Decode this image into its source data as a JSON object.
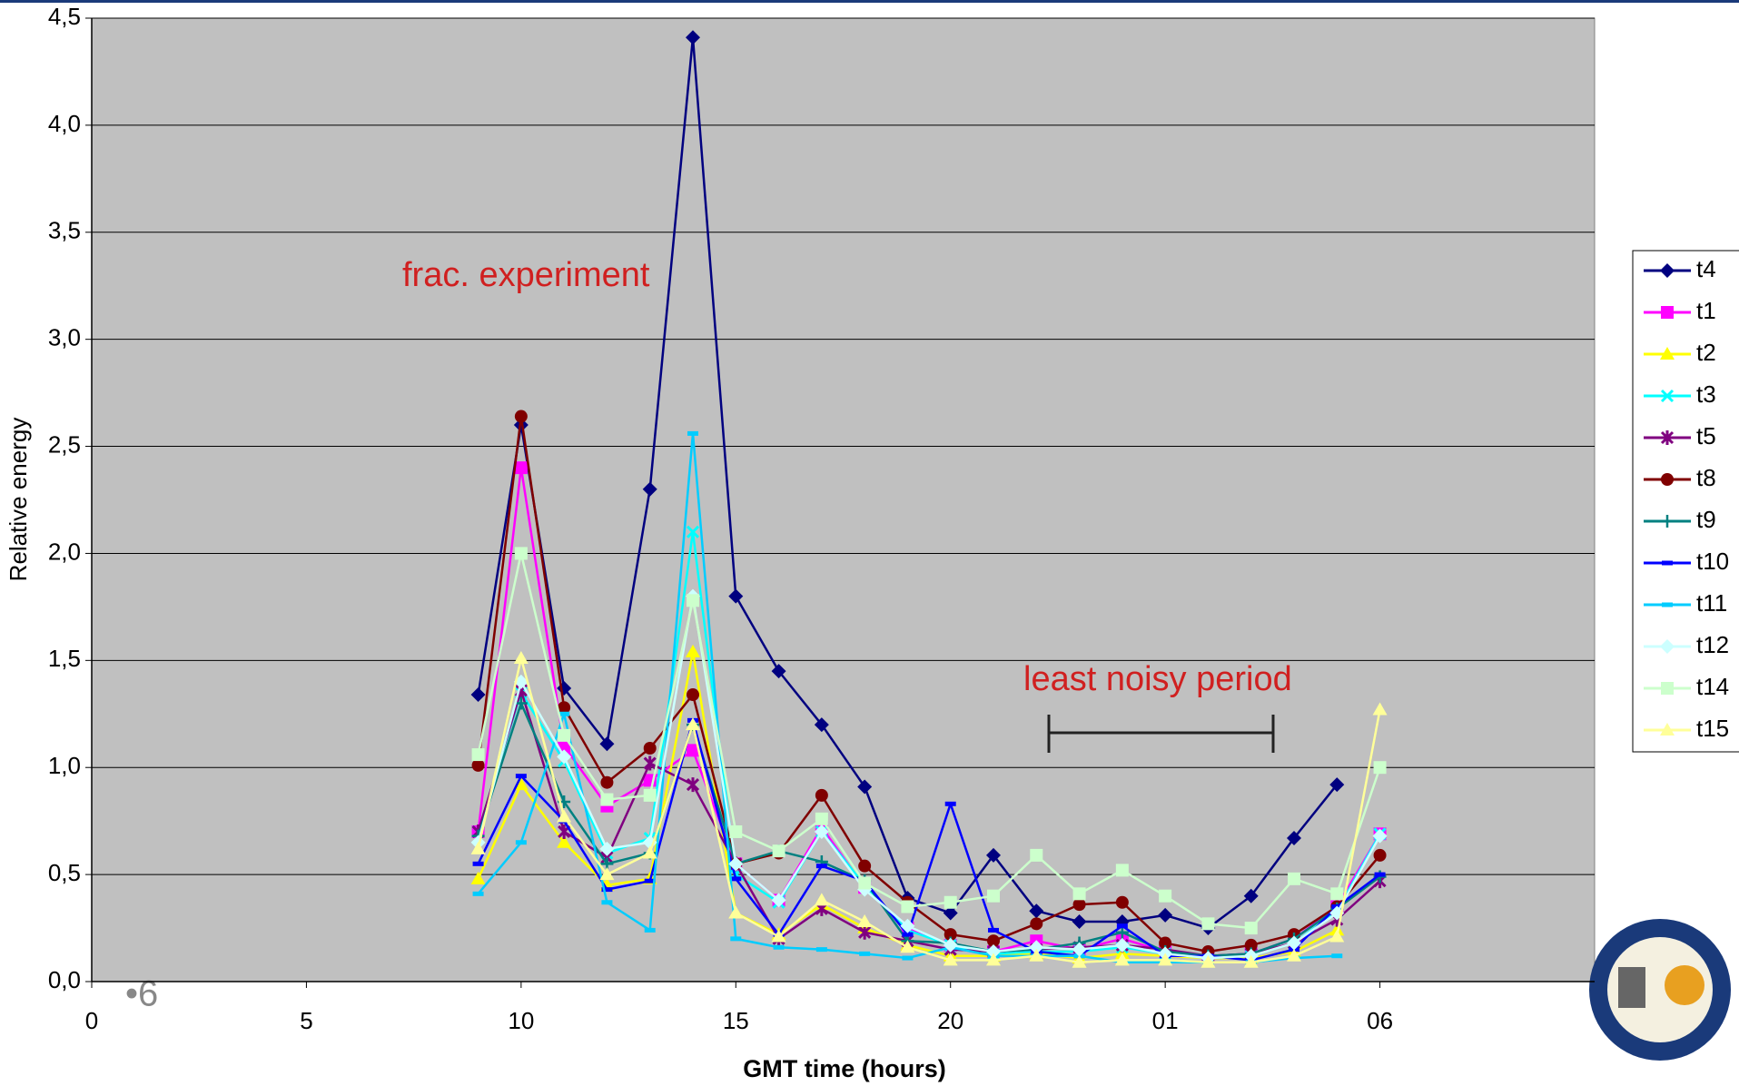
{
  "chart_data": {
    "type": "line",
    "x_label": "GMT time (hours)",
    "y_label": "Relative energy",
    "x": [
      9,
      10,
      11,
      12,
      13,
      14,
      15,
      16,
      17,
      18,
      19,
      20,
      21,
      22,
      23,
      24,
      25,
      26,
      27,
      28,
      29,
      30
    ],
    "xlim": [
      0,
      35
    ],
    "xticks": [
      0,
      5,
      10,
      15,
      20,
      {
        "value": 25,
        "label": "01"
      },
      {
        "value": 30,
        "label": "06"
      }
    ],
    "ylim": [
      0,
      4.5
    ],
    "yticks": [
      {
        "value": 0,
        "label": "0,0"
      },
      {
        "value": 0.5,
        "label": "0,5"
      },
      {
        "value": 1,
        "label": "1,0"
      },
      {
        "value": 1.5,
        "label": "1,5"
      },
      {
        "value": 2,
        "label": "2,0"
      },
      {
        "value": 2.5,
        "label": "2,5"
      },
      {
        "value": 3,
        "label": "3,0"
      },
      {
        "value": 3.5,
        "label": "3,5"
      },
      {
        "value": 4,
        "label": "4,0"
      },
      {
        "value": 4.5,
        "label": "4,5"
      }
    ],
    "grid": true,
    "legend": "right",
    "annotations": [
      "frac. experiment",
      "least noisy period"
    ],
    "page_number": "•6",
    "series": [
      {
        "name": "t4",
        "color": "#000080",
        "marker": "diamond",
        "values": [
          1.34,
          2.6,
          1.37,
          1.11,
          2.3,
          4.41,
          1.8,
          1.45,
          1.2,
          0.91,
          0.39,
          0.32,
          0.59,
          0.33,
          0.28,
          0.28,
          0.31,
          0.25,
          0.4,
          0.67,
          0.92,
          null
        ]
      },
      {
        "name": "t1",
        "color": "#ff00ff",
        "marker": "square",
        "values": [
          0.7,
          2.4,
          1.1,
          0.82,
          0.94,
          1.08,
          0.55,
          0.38,
          0.72,
          0.44,
          0.25,
          0.17,
          0.14,
          0.19,
          0.15,
          0.2,
          0.14,
          0.12,
          0.13,
          0.2,
          0.35,
          0.69
        ]
      },
      {
        "name": "t2",
        "color": "#ffff00",
        "marker": "triangle",
        "values": [
          0.48,
          0.92,
          0.65,
          0.45,
          0.48,
          1.54,
          0.32,
          0.22,
          0.36,
          0.25,
          0.17,
          0.12,
          0.12,
          0.13,
          0.11,
          0.13,
          0.12,
          0.11,
          0.11,
          0.14,
          0.24,
          null
        ]
      },
      {
        "name": "t3",
        "color": "#00ffff",
        "marker": "x",
        "values": [
          0.7,
          1.35,
          1.03,
          0.6,
          0.67,
          2.1,
          0.5,
          0.37,
          0.7,
          0.45,
          0.24,
          0.17,
          0.13,
          0.14,
          0.14,
          0.16,
          0.13,
          0.11,
          0.12,
          0.18,
          0.33,
          0.69
        ]
      },
      {
        "name": "t5",
        "color": "#800080",
        "marker": "star",
        "values": [
          0.7,
          1.36,
          0.7,
          0.58,
          1.02,
          0.92,
          0.55,
          0.2,
          0.34,
          0.23,
          0.19,
          0.15,
          0.14,
          0.15,
          0.16,
          0.17,
          0.15,
          0.12,
          0.13,
          0.18,
          0.29,
          0.47
        ]
      },
      {
        "name": "t8",
        "color": "#800000",
        "marker": "circle",
        "values": [
          1.01,
          2.64,
          1.28,
          0.93,
          1.09,
          1.34,
          0.55,
          0.6,
          0.87,
          0.54,
          0.37,
          0.22,
          0.19,
          0.27,
          0.36,
          0.37,
          0.18,
          0.14,
          0.17,
          0.22,
          0.35,
          0.59
        ]
      },
      {
        "name": "t9",
        "color": "#008080",
        "marker": "plus",
        "values": [
          0.68,
          1.3,
          0.84,
          0.55,
          0.6,
          1.2,
          0.55,
          0.61,
          0.56,
          0.47,
          0.19,
          0.18,
          0.14,
          0.15,
          0.18,
          0.23,
          0.14,
          0.12,
          0.13,
          0.2,
          0.34,
          0.49
        ]
      },
      {
        "name": "t10",
        "color": "#0000ff",
        "marker": "dash",
        "values": [
          0.55,
          0.96,
          0.75,
          0.43,
          0.47,
          1.22,
          0.48,
          0.22,
          0.54,
          0.47,
          0.22,
          0.83,
          0.24,
          0.14,
          0.12,
          0.26,
          0.12,
          0.12,
          0.1,
          0.15,
          0.35,
          0.5
        ]
      },
      {
        "name": "t11",
        "color": "#00ccff",
        "marker": "dash",
        "values": [
          0.41,
          0.65,
          1.25,
          0.37,
          0.24,
          2.56,
          0.2,
          0.16,
          0.15,
          0.13,
          0.11,
          0.16,
          0.12,
          0.12,
          0.12,
          0.09,
          0.09,
          0.09,
          0.09,
          0.11,
          0.12,
          null
        ]
      },
      {
        "name": "t12",
        "color": "#ccffff",
        "marker": "diamond",
        "values": [
          0.65,
          1.4,
          1.05,
          0.62,
          0.65,
          1.8,
          0.55,
          0.38,
          0.7,
          0.43,
          0.26,
          0.17,
          0.14,
          0.16,
          0.15,
          0.17,
          0.13,
          0.11,
          0.12,
          0.18,
          0.32,
          0.68
        ]
      },
      {
        "name": "t14",
        "color": "#ccffcc",
        "marker": "square",
        "values": [
          1.06,
          2.0,
          1.15,
          0.85,
          0.87,
          1.78,
          0.7,
          0.61,
          0.76,
          0.46,
          0.35,
          0.37,
          0.4,
          0.59,
          0.41,
          0.52,
          0.4,
          0.27,
          0.25,
          0.48,
          0.41,
          1.0
        ]
      },
      {
        "name": "t15",
        "color": "#ffff99",
        "marker": "triangle",
        "values": [
          0.62,
          1.51,
          0.77,
          0.5,
          0.6,
          1.2,
          0.32,
          0.21,
          0.38,
          0.28,
          0.16,
          0.1,
          0.1,
          0.12,
          0.09,
          0.1,
          0.1,
          0.09,
          0.09,
          0.12,
          0.21,
          1.27
        ]
      }
    ]
  }
}
